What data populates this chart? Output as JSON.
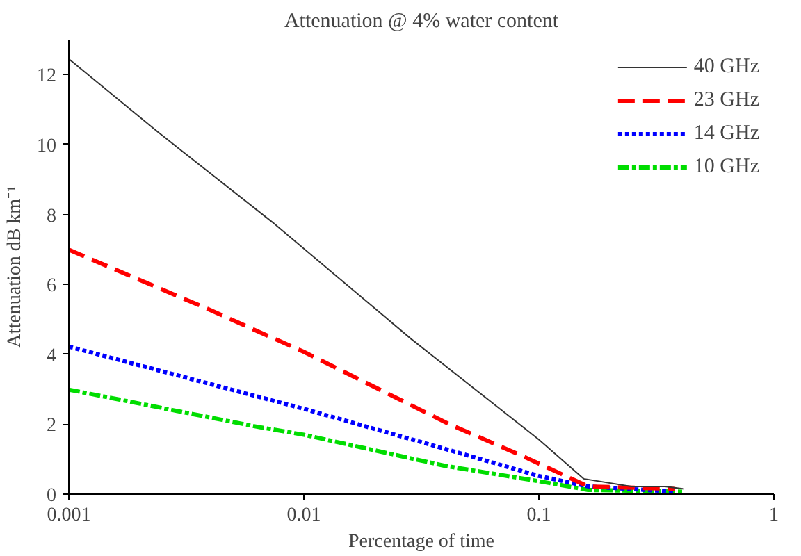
{
  "chart_data": {
    "type": "line",
    "title": "Attenuation @ 4% water content",
    "xlabel": "Percentage of time",
    "ylabel": "Attenuation dB km⁻¹",
    "log": "x",
    "xlim": [
      0.001,
      1
    ],
    "xticks": [
      0.001,
      0.01,
      0.1,
      1
    ],
    "ylim": [
      0,
      13
    ],
    "yticks": [
      0,
      2,
      4,
      6,
      8,
      10,
      12
    ],
    "grid": false,
    "legend": "top right",
    "marker": "none",
    "series": [
      {
        "name": "40 GHz",
        "color": "#333333",
        "line_style": "solid",
        "x": [
          0.001,
          0.00238,
          0.00734,
          0.0286,
          0.1,
          0.155,
          0.247,
          0.344,
          0.414
        ],
        "values": [
          12.45,
          10.37,
          7.78,
          4.44,
          1.56,
          0.44,
          0.22,
          0.22,
          0.15
        ]
      },
      {
        "name": "23 GHz",
        "color": "#ff0000",
        "line_style": "dashed",
        "x": [
          0.001,
          0.0038,
          0.01,
          0.0416,
          0.084,
          0.162,
          0.38
        ],
        "values": [
          6.99,
          5.33,
          4.07,
          2.0,
          1.11,
          0.22,
          0.15
        ]
      },
      {
        "name": "14 GHz",
        "color": "#0000ff",
        "line_style": "dotted",
        "x": [
          0.001,
          0.01,
          0.0416,
          0.1,
          0.162,
          0.38
        ],
        "values": [
          4.22,
          2.44,
          1.26,
          0.52,
          0.22,
          0.07
        ]
      },
      {
        "name": "10 GHz",
        "color": "#00dd00",
        "line_style": "dashdot",
        "x": [
          0.001,
          0.0063,
          0.01,
          0.0398,
          0.1,
          0.162,
          0.414
        ],
        "values": [
          2.99,
          1.93,
          1.7,
          0.81,
          0.37,
          0.12,
          0.07
        ]
      }
    ]
  }
}
